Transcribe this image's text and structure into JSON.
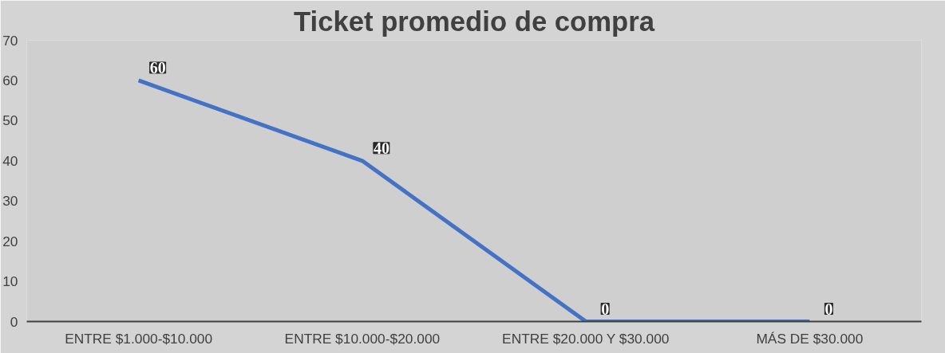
{
  "chart_data": {
    "type": "line",
    "title": "Ticket promedio de compra",
    "categories": [
      "ENTRE $1.000-$10.000",
      "ENTRE $10.000-$20.000",
      "ENTRE $20.000 Y $30.000",
      "MÁS DE $30.000"
    ],
    "series": [
      {
        "color": "#4472c4",
        "values": [
          60,
          40,
          0,
          0
        ]
      }
    ],
    "ylim": [
      0,
      70
    ],
    "yticks": [
      0,
      10,
      20,
      30,
      40,
      50,
      60,
      70
    ],
    "grid": false,
    "line_style": "solid",
    "data_labels": true
  }
}
